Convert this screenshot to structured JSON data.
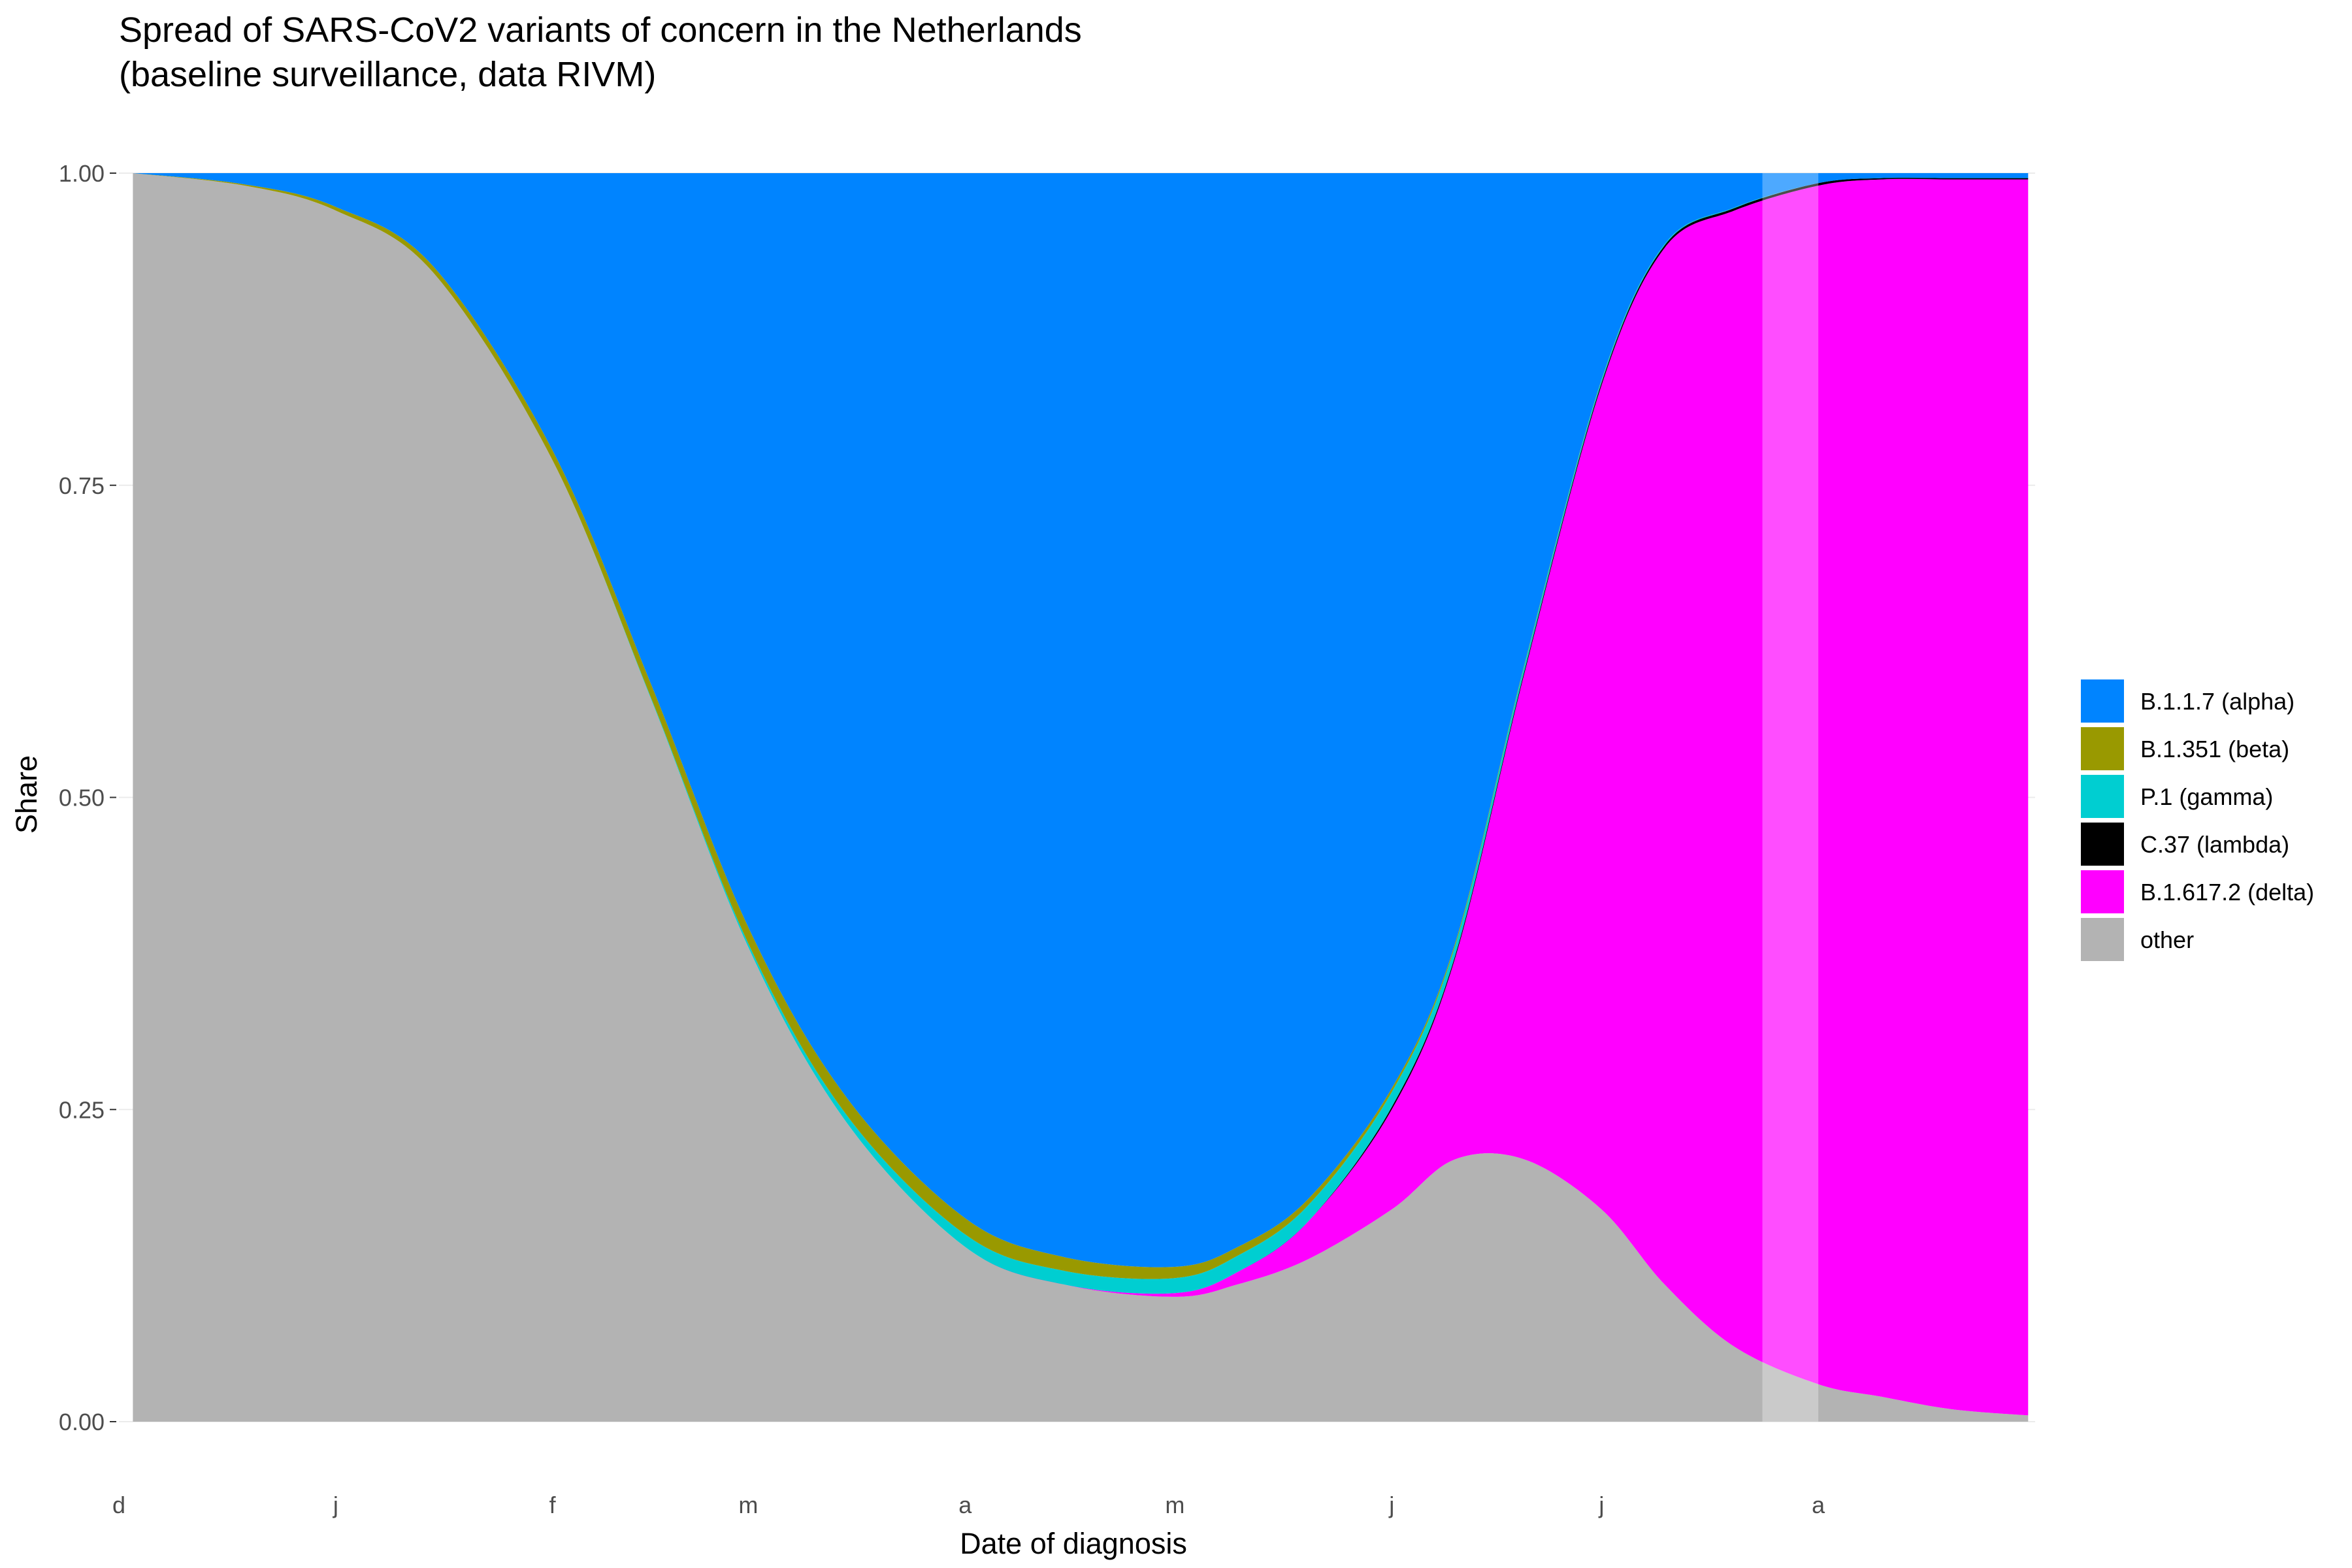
{
  "chart_data": {
    "type": "area",
    "stacked": "fill",
    "title": "Spread of SARS-CoV2 variants of concern in the Netherlands",
    "subtitle": "(baseline surveillance, data RIVM)",
    "xlabel": "Date of diagnosis",
    "ylabel": "Share",
    "x_domain": [
      "2020-12-01",
      "2021-09-01"
    ],
    "ylim": [
      0,
      1
    ],
    "x_ticks": [
      {
        "date": "2020-12-01",
        "label": "d"
      },
      {
        "date": "2021-01-01",
        "label": "j"
      },
      {
        "date": "2021-02-01",
        "label": "f"
      },
      {
        "date": "2021-03-01",
        "label": "m"
      },
      {
        "date": "2021-04-01",
        "label": "a"
      },
      {
        "date": "2021-05-01",
        "label": "m"
      },
      {
        "date": "2021-06-01",
        "label": "j"
      },
      {
        "date": "2021-07-01",
        "label": "j"
      },
      {
        "date": "2021-08-01",
        "label": "a"
      }
    ],
    "y_ticks": [
      {
        "value": 0.0,
        "label": "0.00"
      },
      {
        "value": 0.25,
        "label": "0.25"
      },
      {
        "value": 0.5,
        "label": "0.50"
      },
      {
        "value": 0.75,
        "label": "0.75"
      },
      {
        "value": 1.0,
        "label": "1.00"
      }
    ],
    "highlight_range": [
      "2021-07-24",
      "2021-08-01"
    ],
    "grid": true,
    "legend_position": "right",
    "x": [
      "2020-12-03",
      "2020-12-19",
      "2021-01-01",
      "2021-01-15",
      "2021-02-01",
      "2021-02-15",
      "2021-03-01",
      "2021-03-15",
      "2021-04-01",
      "2021-04-15",
      "2021-05-01",
      "2021-05-10",
      "2021-05-20",
      "2021-06-01",
      "2021-06-10",
      "2021-06-20",
      "2021-07-01",
      "2021-07-10",
      "2021-07-20",
      "2021-08-01",
      "2021-08-10",
      "2021-08-20",
      "2021-08-31"
    ],
    "series": [
      {
        "name": "other",
        "color": "#B3B3B3",
        "values": [
          1.0,
          0.99,
          0.97,
          0.92,
          0.77,
          0.58,
          0.38,
          0.24,
          0.14,
          0.11,
          0.1,
          0.11,
          0.13,
          0.17,
          0.21,
          0.21,
          0.17,
          0.11,
          0.06,
          0.03,
          0.02,
          0.01,
          0.005
        ]
      },
      {
        "name": "B.1.617.2 (delta)",
        "color": "#FF00FF",
        "values": [
          0,
          0,
          0,
          0,
          0,
          0,
          0,
          0,
          0,
          0,
          0.003,
          0.01,
          0.03,
          0.08,
          0.16,
          0.39,
          0.66,
          0.83,
          0.91,
          0.96,
          0.975,
          0.985,
          0.99
        ]
      },
      {
        "name": "C.37 (lambda)",
        "color": "#000000",
        "values": [
          0,
          0,
          0,
          0,
          0,
          0,
          0,
          0,
          0,
          0,
          0,
          0,
          0,
          0.002,
          0.002,
          0.002,
          0.002,
          0.002,
          0.002,
          0.002,
          0.001,
          0.001,
          0.001
        ]
      },
      {
        "name": "P.1 (gamma)",
        "color": "#00CED1",
        "values": [
          0,
          0,
          0,
          0,
          0,
          0.001,
          0.003,
          0.006,
          0.01,
          0.011,
          0.012,
          0.013,
          0.013,
          0.012,
          0.008,
          0.004,
          0.002,
          0.001,
          0.0005,
          0,
          0,
          0,
          0
        ]
      },
      {
        "name": "B.1.351 (beta)",
        "color": "#999900",
        "values": [
          0,
          0.001,
          0.003,
          0.005,
          0.008,
          0.011,
          0.013,
          0.014,
          0.013,
          0.011,
          0.009,
          0.007,
          0.005,
          0.003,
          0.002,
          0.001,
          0.0005,
          0,
          0,
          0,
          0,
          0,
          0
        ]
      },
      {
        "name": "B.1.1.7 (alpha)",
        "color": "#0084FF",
        "values": "remainder"
      }
    ],
    "legend": [
      {
        "label": "B.1.1.7 (alpha)",
        "color": "#0084FF"
      },
      {
        "label": "B.1.351 (beta)",
        "color": "#999900"
      },
      {
        "label": "P.1 (gamma)",
        "color": "#00CED1"
      },
      {
        "label": "C.37 (lambda)",
        "color": "#000000"
      },
      {
        "label": "B.1.617.2 (delta)",
        "color": "#FF00FF"
      },
      {
        "label": "other",
        "color": "#B3B3B3"
      }
    ]
  }
}
